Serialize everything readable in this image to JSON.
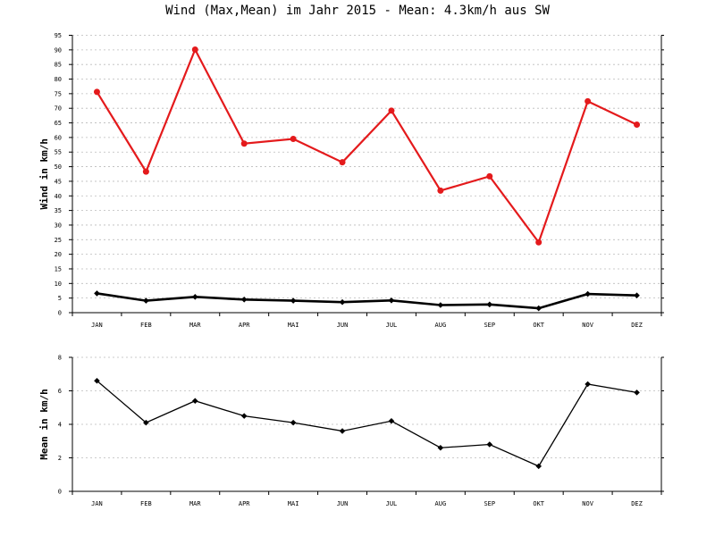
{
  "title": "Wind (Max,Mean) im Jahr 2015 - Mean: 4.3km/h aus SW",
  "colors": {
    "max": "#e41a1c",
    "mean": "#000000",
    "grid": "#bbbbbb"
  },
  "chart_data": [
    {
      "type": "line",
      "ylabel": "Wind in km/h",
      "ylim": [
        0,
        95
      ],
      "yticks": [
        0,
        5,
        10,
        15,
        20,
        25,
        30,
        35,
        40,
        45,
        50,
        55,
        60,
        65,
        70,
        75,
        80,
        85,
        90,
        95
      ],
      "grid": true,
      "categories": [
        "JAN",
        "FEB",
        "MAR",
        "APR",
        "MAI",
        "JUN",
        "JUL",
        "AUG",
        "SEP",
        "OKT",
        "NOV",
        "DEZ"
      ],
      "series": [
        {
          "color": "#e41a1c",
          "values": [
            75.6,
            48.3,
            90.1,
            57.9,
            59.5,
            51.5,
            69.2,
            41.8,
            46.7,
            24.1,
            72.4,
            64.4
          ]
        },
        {
          "color": "#000000",
          "values": [
            6.6,
            4.1,
            5.4,
            4.5,
            4.1,
            3.6,
            4.2,
            2.6,
            2.8,
            1.5,
            6.4,
            5.9
          ]
        }
      ]
    },
    {
      "type": "line",
      "ylabel": "Mean in km/h",
      "ylim": [
        0,
        8
      ],
      "yticks": [
        0,
        2,
        4,
        6,
        8
      ],
      "grid": true,
      "categories": [
        "JAN",
        "FEB",
        "MAR",
        "APR",
        "MAI",
        "JUN",
        "JUL",
        "AUG",
        "SEP",
        "OKT",
        "NOV",
        "DEZ"
      ],
      "series": [
        {
          "color": "#000000",
          "values": [
            6.6,
            4.1,
            5.4,
            4.5,
            4.1,
            3.6,
            4.2,
            2.6,
            2.8,
            1.5,
            6.4,
            5.9
          ]
        }
      ]
    }
  ]
}
